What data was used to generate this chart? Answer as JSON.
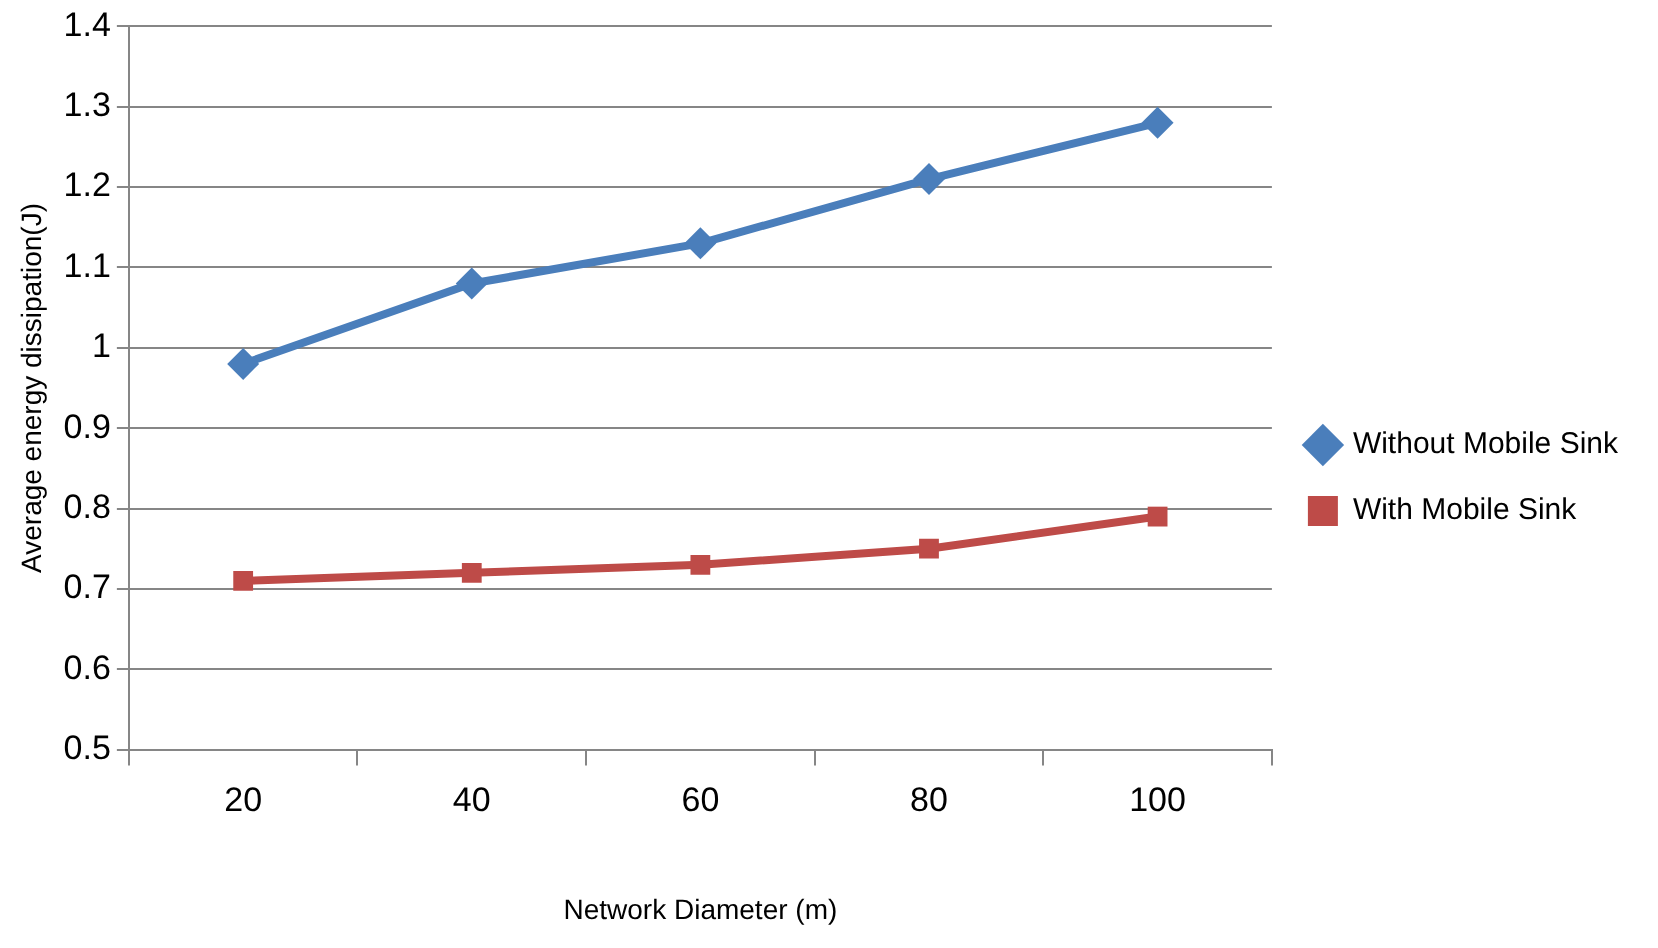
{
  "chart_data": {
    "type": "line",
    "xlabel": "Network Diameter (m)",
    "ylabel": "Average energy dissipation(J)",
    "categories": [
      "20",
      "40",
      "60",
      "80",
      "100"
    ],
    "series": [
      {
        "name": "Without Mobile Sink",
        "color": "#4a7ebb",
        "marker": "diamond",
        "values": [
          0.98,
          1.08,
          1.13,
          1.21,
          1.28
        ]
      },
      {
        "name": "With Mobile Sink",
        "color": "#be4b48",
        "marker": "square",
        "values": [
          0.71,
          0.72,
          0.73,
          0.75,
          0.79
        ]
      }
    ],
    "ylim": [
      0.5,
      1.4
    ],
    "yticks": [
      0.5,
      0.6,
      0.7,
      0.8,
      0.9,
      1,
      1.1,
      1.2,
      1.3,
      1.4
    ],
    "grid": "y",
    "legend": "right",
    "line_style": "solid"
  }
}
